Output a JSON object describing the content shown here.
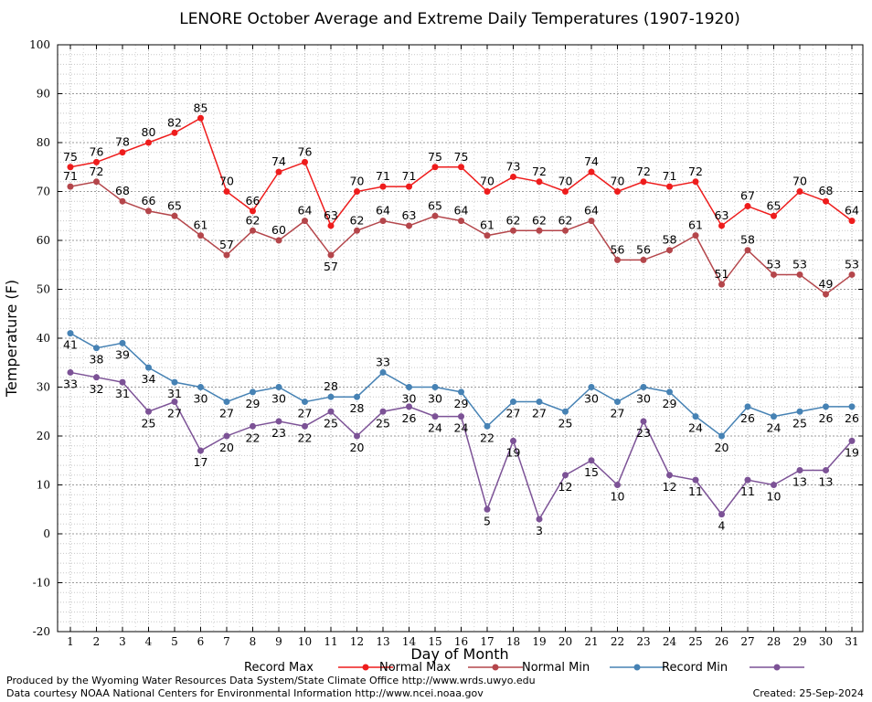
{
  "chart_data": {
    "type": "line",
    "title": "LENORE October Average and Extreme Daily Temperatures (1907-1920)",
    "xlabel": "Day of Month",
    "ylabel": "Temperature (F)",
    "ylim": [
      -20,
      100
    ],
    "yticks": [
      "-20",
      "-10",
      "0",
      "10",
      "20",
      "30",
      "40",
      "50",
      "60",
      "70",
      "80",
      "90",
      "100"
    ],
    "x": [
      "1",
      "2",
      "3",
      "4",
      "5",
      "6",
      "7",
      "8",
      "9",
      "10",
      "11",
      "12",
      "13",
      "14",
      "15",
      "16",
      "17",
      "18",
      "19",
      "20",
      "21",
      "22",
      "23",
      "24",
      "25",
      "26",
      "27",
      "28",
      "29",
      "30",
      "31"
    ],
    "grid": true,
    "legend_position": "bottom",
    "series": [
      {
        "name": "Record Max",
        "color": "#ee1c1c",
        "values": [
          75,
          76,
          78,
          80,
          82,
          85,
          70,
          66,
          74,
          76,
          63,
          70,
          71,
          71,
          75,
          75,
          70,
          73,
          72,
          70,
          74,
          70,
          72,
          71,
          72,
          63,
          67,
          65,
          70,
          68,
          64
        ]
      },
      {
        "name": "Normal Max",
        "color": "#b4464b",
        "values": [
          71,
          72,
          68,
          66,
          65,
          61,
          57,
          62,
          60,
          64,
          57,
          62,
          64,
          63,
          65,
          64,
          61,
          62,
          62,
          62,
          64,
          56,
          56,
          58,
          61,
          51,
          58,
          53,
          53,
          49,
          53
        ]
      },
      {
        "name": "Normal Min",
        "color": "#4682b4",
        "values": [
          41,
          38,
          39,
          34,
          31,
          30,
          27,
          29,
          30,
          27,
          28,
          28,
          33,
          30,
          30,
          29,
          22,
          27,
          27,
          25,
          30,
          27,
          30,
          29,
          24,
          20,
          26,
          24,
          25,
          26,
          26
        ]
      },
      {
        "name": "Record Min",
        "color": "#7c5296",
        "values": [
          33,
          32,
          31,
          25,
          27,
          17,
          20,
          22,
          23,
          22,
          25,
          20,
          25,
          26,
          24,
          24,
          5,
          19,
          3,
          12,
          15,
          10,
          23,
          12,
          11,
          4,
          11,
          10,
          13,
          13,
          19
        ]
      }
    ]
  },
  "footer": {
    "produced_by": "Produced by the Wyoming Water Resources Data System/State Climate Office http://www.wrds.uwyo.edu",
    "courtesy": "Data courtesy NOAA National Centers for Environmental Information http://www.ncei.noaa.gov",
    "created": "Created:  25-Sep-2024"
  }
}
